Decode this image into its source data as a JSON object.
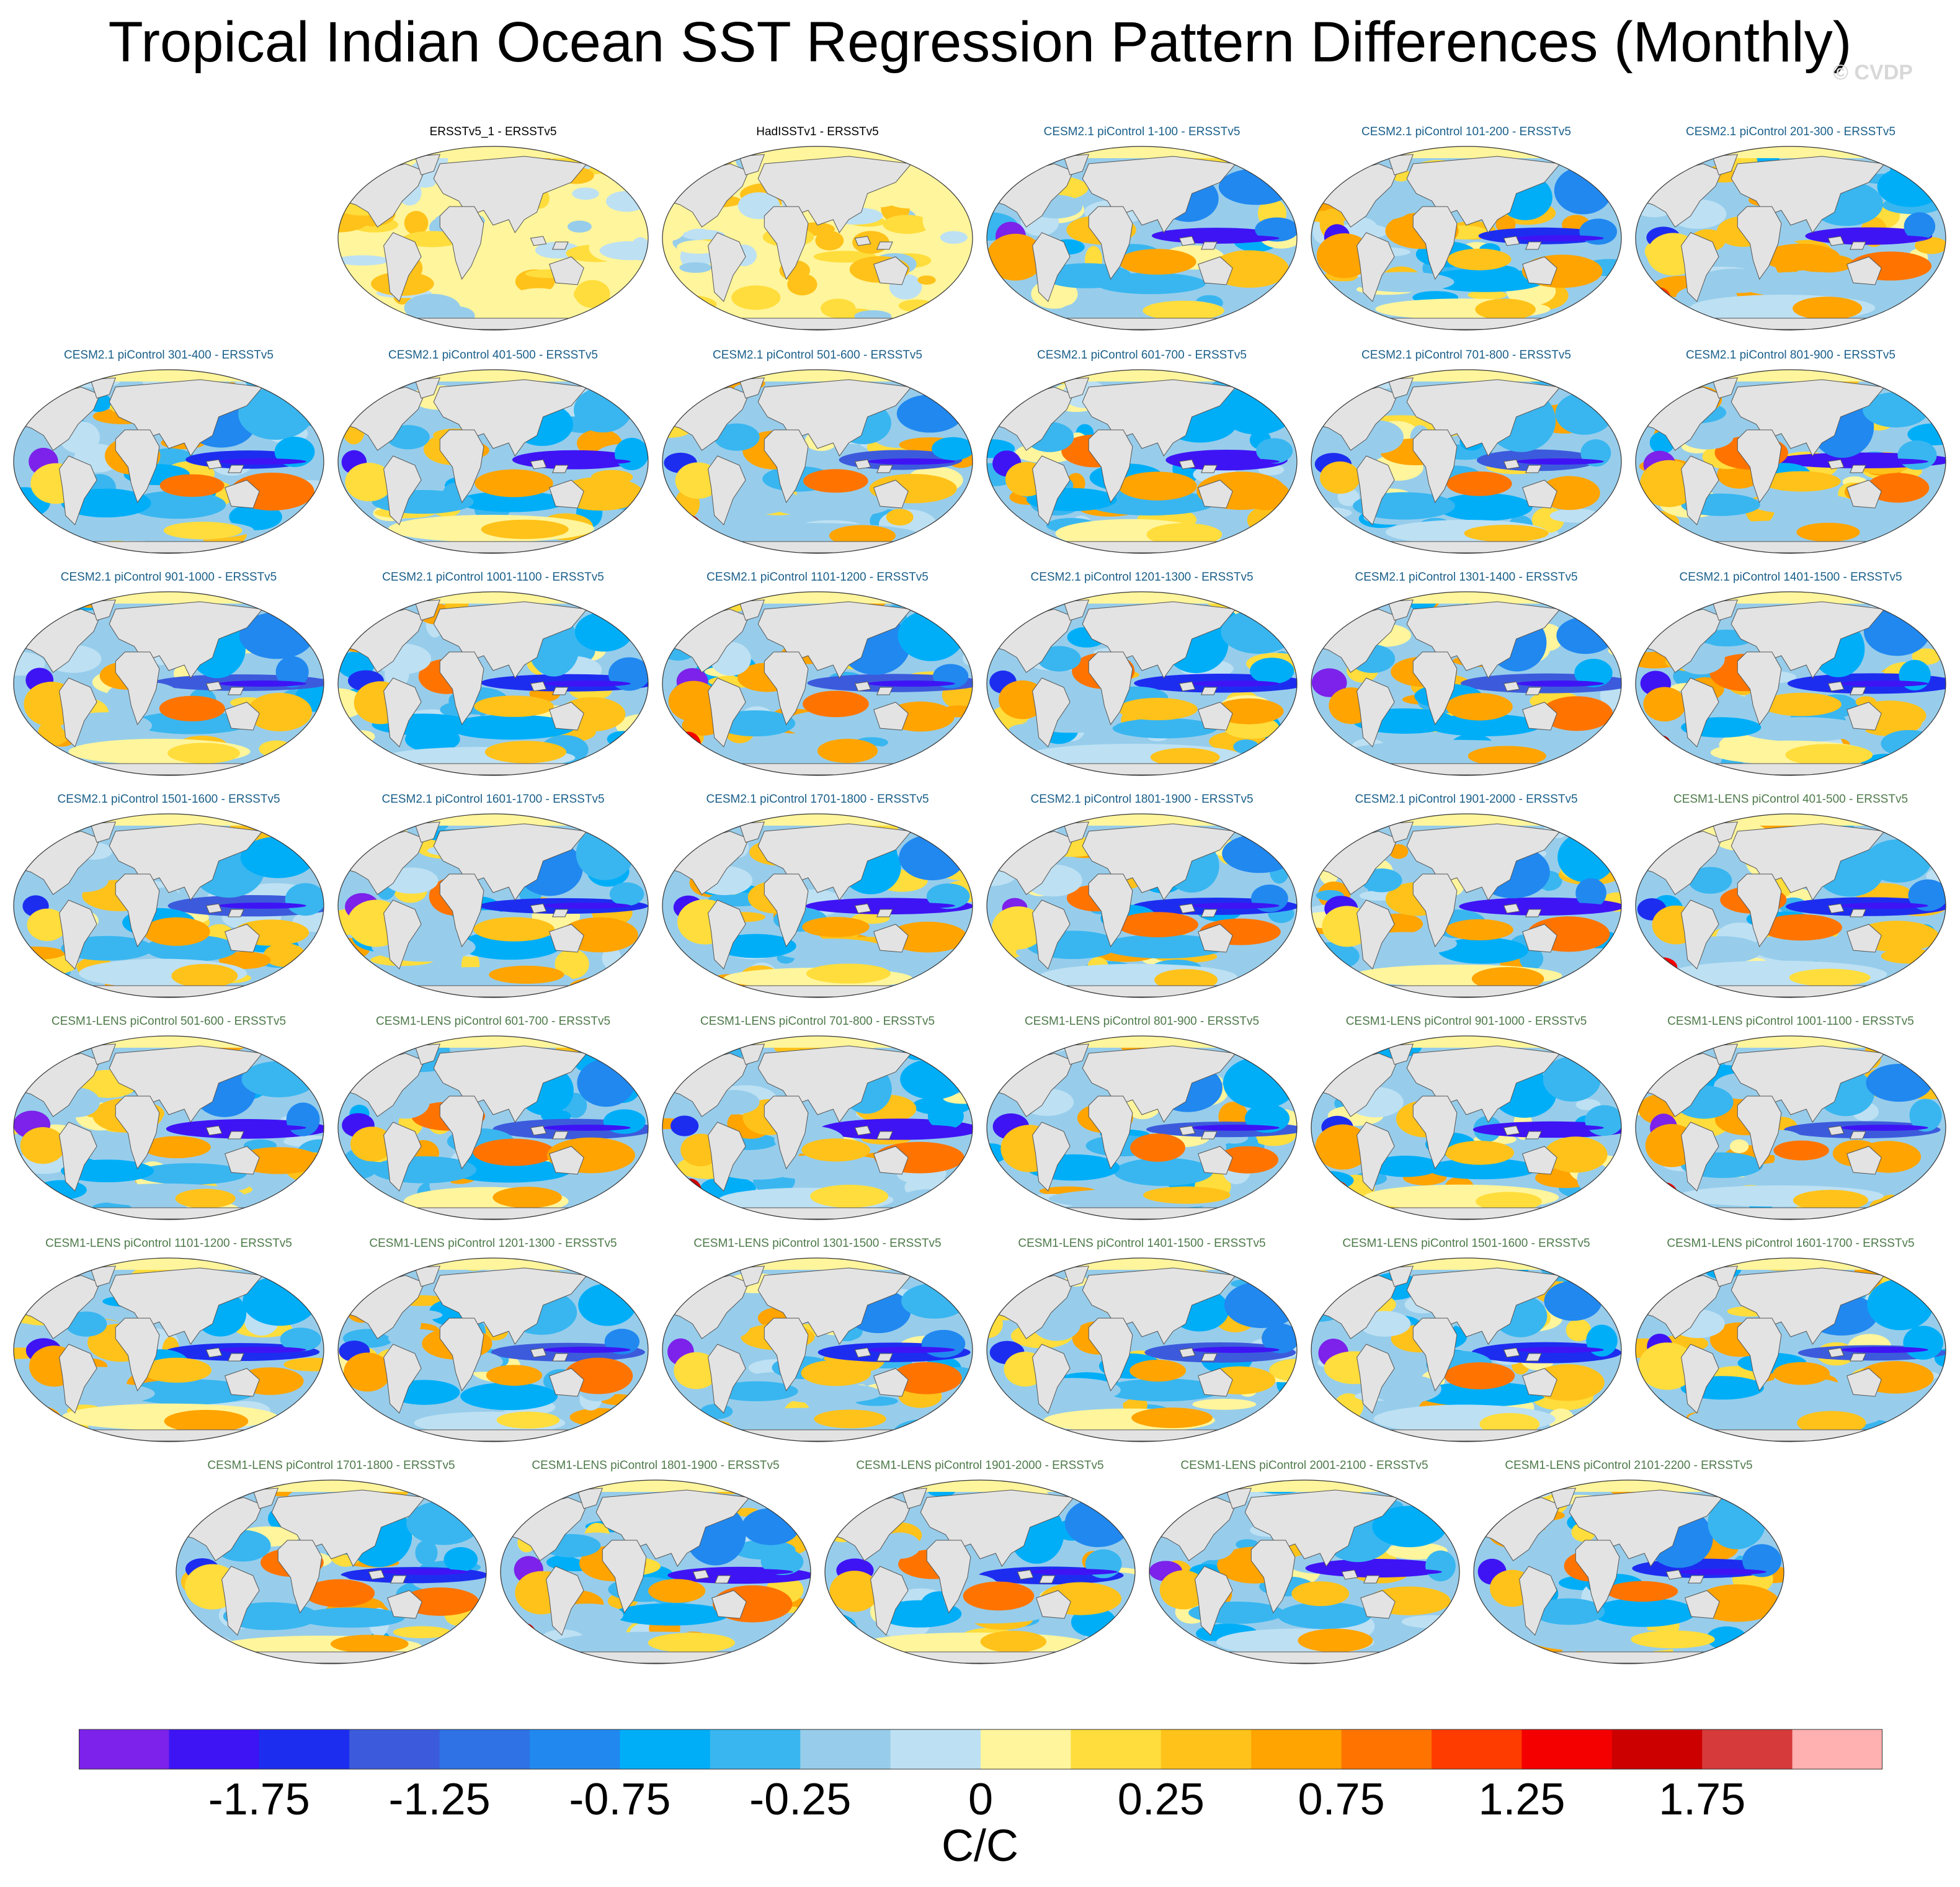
{
  "title": "Tropical Indian Ocean SST Regression Pattern Differences (Monthly)",
  "watermark": "© CVDP",
  "chart_data": {
    "type": "heatmap",
    "subtype": "panel grid of global maps (Robinson projection)",
    "title": "Tropical Indian Ocean SST Regression Pattern Differences (Monthly)",
    "units": "C/C",
    "colorbar": {
      "tick_labels": [
        "-1.75",
        "-1.25",
        "-0.75",
        "-0.25",
        "0",
        "0.25",
        "0.75",
        "1.25",
        "1.75"
      ],
      "tick_values": [
        -1.75,
        -1.25,
        -0.75,
        -0.25,
        0,
        0.25,
        0.75,
        1.25,
        1.75
      ],
      "tick_after_color_index": [
        1,
        3,
        5,
        7,
        9,
        11,
        13,
        15,
        17
      ],
      "levels": [
        -2.0,
        -1.75,
        -1.5,
        -1.25,
        -1.0,
        -0.75,
        -0.5,
        -0.25,
        -0.1,
        0,
        0.1,
        0.25,
        0.5,
        0.75,
        1.0,
        1.25,
        1.5,
        1.75,
        2.0
      ],
      "colors": [
        "#7c22ea",
        "#3e14f5",
        "#1d2df0",
        "#3c5bdc",
        "#2e72e6",
        "#2188f0",
        "#00aef8",
        "#39b6f0",
        "#97cdeb",
        "#bde0f3",
        "#fff59c",
        "#ffdd3c",
        "#ffc21a",
        "#ffa400",
        "#ff7400",
        "#ff3c00",
        "#f50000",
        "#cd0000",
        "#d63a3a",
        "#ffb0b0"
      ]
    },
    "panels": [
      {
        "title": "ERSSTv5_1 - ERSSTv5",
        "group": "obs"
      },
      {
        "title": "HadISSTv1 - ERSSTv5",
        "group": "obs"
      },
      {
        "title": "CESM2.1 piControl 1-100 - ERSSTv5",
        "group": "cesm2"
      },
      {
        "title": "CESM2.1 piControl 101-200 - ERSSTv5",
        "group": "cesm2"
      },
      {
        "title": "CESM2.1 piControl 201-300 - ERSSTv5",
        "group": "cesm2"
      },
      {
        "title": "CESM2.1 piControl 301-400 - ERSSTv5",
        "group": "cesm2"
      },
      {
        "title": "CESM2.1 piControl 401-500 - ERSSTv5",
        "group": "cesm2"
      },
      {
        "title": "CESM2.1 piControl 501-600 - ERSSTv5",
        "group": "cesm2"
      },
      {
        "title": "CESM2.1 piControl 601-700 - ERSSTv5",
        "group": "cesm2"
      },
      {
        "title": "CESM2.1 piControl 701-800 - ERSSTv5",
        "group": "cesm2"
      },
      {
        "title": "CESM2.1 piControl 801-900 - ERSSTv5",
        "group": "cesm2"
      },
      {
        "title": "CESM2.1 piControl 901-1000 - ERSSTv5",
        "group": "cesm2"
      },
      {
        "title": "CESM2.1 piControl 1001-1100 - ERSSTv5",
        "group": "cesm2"
      },
      {
        "title": "CESM2.1 piControl 1101-1200 - ERSSTv5",
        "group": "cesm2"
      },
      {
        "title": "CESM2.1 piControl 1201-1300 - ERSSTv5",
        "group": "cesm2"
      },
      {
        "title": "CESM2.1 piControl 1301-1400 - ERSSTv5",
        "group": "cesm2"
      },
      {
        "title": "CESM2.1 piControl 1401-1500 - ERSSTv5",
        "group": "cesm2"
      },
      {
        "title": "CESM2.1 piControl 1501-1600 - ERSSTv5",
        "group": "cesm2"
      },
      {
        "title": "CESM2.1 piControl 1601-1700 - ERSSTv5",
        "group": "cesm2"
      },
      {
        "title": "CESM2.1 piControl 1701-1800 - ERSSTv5",
        "group": "cesm2"
      },
      {
        "title": "CESM2.1 piControl 1801-1900 - ERSSTv5",
        "group": "cesm2"
      },
      {
        "title": "CESM2.1 piControl 1901-2000 - ERSSTv5",
        "group": "cesm2"
      },
      {
        "title": "CESM1-LENS piControl 401-500 - ERSSTv5",
        "group": "cesm1"
      },
      {
        "title": "CESM1-LENS piControl 501-600 - ERSSTv5",
        "group": "cesm1"
      },
      {
        "title": "CESM1-LENS piControl 601-700 - ERSSTv5",
        "group": "cesm1"
      },
      {
        "title": "CESM1-LENS piControl 701-800 - ERSSTv5",
        "group": "cesm1"
      },
      {
        "title": "CESM1-LENS piControl 801-900 - ERSSTv5",
        "group": "cesm1"
      },
      {
        "title": "CESM1-LENS piControl 901-1000 - ERSSTv5",
        "group": "cesm1"
      },
      {
        "title": "CESM1-LENS piControl 1001-1100 - ERSSTv5",
        "group": "cesm1"
      },
      {
        "title": "CESM1-LENS piControl 1101-1200 - ERSSTv5",
        "group": "cesm1"
      },
      {
        "title": "CESM1-LENS piControl 1201-1300 - ERSSTv5",
        "group": "cesm1"
      },
      {
        "title": "CESM1-LENS piControl 1301-1500 - ERSSTv5",
        "group": "cesm1"
      },
      {
        "title": "CESM1-LENS piControl 1401-1500 - ERSSTv5",
        "group": "cesm1"
      },
      {
        "title": "CESM1-LENS piControl 1501-1600 - ERSSTv5",
        "group": "cesm1"
      },
      {
        "title": "CESM1-LENS piControl 1601-1700 - ERSSTv5",
        "group": "cesm1"
      },
      {
        "title": "CESM1-LENS piControl 1701-1800 - ERSSTv5",
        "group": "cesm1"
      },
      {
        "title": "CESM1-LENS piControl 1801-1900 - ERSSTv5",
        "group": "cesm1"
      },
      {
        "title": "CESM1-LENS piControl 1901-2000 - ERSSTv5",
        "group": "cesm1"
      },
      {
        "title": "CESM1-LENS piControl 2001-2100 - ERSSTv5",
        "group": "cesm1"
      },
      {
        "title": "CESM1-LENS piControl 2101-2200 - ERSSTv5",
        "group": "cesm1"
      }
    ],
    "group_title_colors": {
      "obs": "#000000",
      "cesm2": "#1a5f8a",
      "cesm1": "#4e7a4a"
    }
  }
}
